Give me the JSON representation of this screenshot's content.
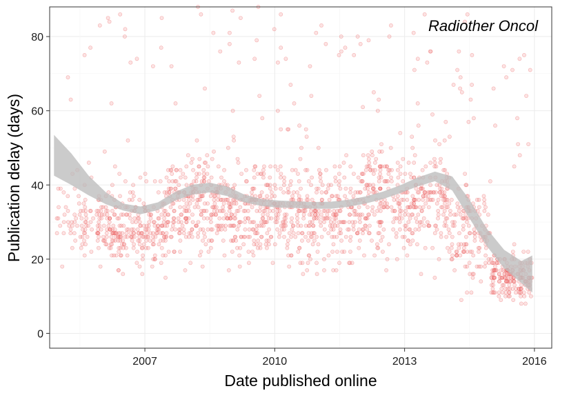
{
  "chart_data": {
    "type": "scatter",
    "annotation": "Radiother Oncol",
    "xlabel": "Date published online",
    "ylabel": "Publication delay (days)",
    "xlim": [
      2004.8,
      2016.4
    ],
    "ylim": [
      -4,
      88
    ],
    "x_ticks": [
      2007,
      2010,
      2013,
      2016
    ],
    "x_tick_labels": [
      "2007",
      "2010",
      "2013",
      "2016"
    ],
    "y_ticks": [
      0,
      20,
      40,
      60,
      80
    ],
    "y_tick_labels": [
      "0",
      "20",
      "40",
      "60",
      "80"
    ],
    "grid": true,
    "point_color": "#f08080",
    "band_color": "#bdbdbd",
    "smooth": {
      "x": [
        2004.9,
        2005.3,
        2005.7,
        2006.1,
        2006.5,
        2006.9,
        2007.3,
        2007.7,
        2008.1,
        2008.5,
        2008.9,
        2009.3,
        2009.7,
        2010.1,
        2010.5,
        2010.9,
        2011.3,
        2011.7,
        2012.1,
        2012.5,
        2012.9,
        2013.3,
        2013.7,
        2014.1,
        2014.5,
        2014.9,
        2015.3,
        2015.7,
        2015.95
      ],
      "lower": [
        42.5,
        40,
        37.2,
        34.8,
        33.1,
        32.1,
        33.2,
        35.8,
        37.4,
        38.0,
        37.0,
        35.3,
        34.3,
        33.9,
        33.8,
        33.6,
        33.6,
        34.1,
        35.0,
        36.2,
        37.8,
        39.6,
        41.0,
        38.5,
        31.0,
        23.5,
        17.5,
        13.5,
        11.0
      ],
      "upper": [
        53.5,
        48.5,
        42.5,
        38.0,
        35.0,
        34.2,
        35.3,
        38.1,
        40.1,
        40.6,
        39.6,
        37.4,
        36.2,
        35.8,
        35.6,
        35.4,
        35.5,
        36.0,
        36.9,
        38.2,
        39.9,
        42.0,
        43.6,
        42.3,
        36.0,
        28.2,
        22.5,
        19.5,
        21.0
      ]
    },
    "scatter": {
      "n": 1900,
      "segments": [
        {
          "x_range": [
            2004.95,
            2005.9
          ],
          "median": 30,
          "spread": 11,
          "weight": 0.04
        },
        {
          "x_range": [
            2005.9,
            2007.5
          ],
          "median": 29,
          "spread": 10,
          "weight": 0.15
        },
        {
          "x_range": [
            2007.5,
            2009.5
          ],
          "median": 34,
          "spread": 11,
          "weight": 0.2
        },
        {
          "x_range": [
            2009.5,
            2012.0
          ],
          "median": 32,
          "spread": 11,
          "weight": 0.24
        },
        {
          "x_range": [
            2012.0,
            2014.0
          ],
          "median": 36,
          "spread": 12,
          "weight": 0.19
        },
        {
          "x_range": [
            2014.0,
            2015.0
          ],
          "median": 28,
          "spread": 11,
          "weight": 0.08
        },
        {
          "x_range": [
            2015.0,
            2015.95
          ],
          "median": 15,
          "spread": 6,
          "weight": 0.1
        }
      ],
      "y_range": [
        4,
        88
      ]
    }
  }
}
